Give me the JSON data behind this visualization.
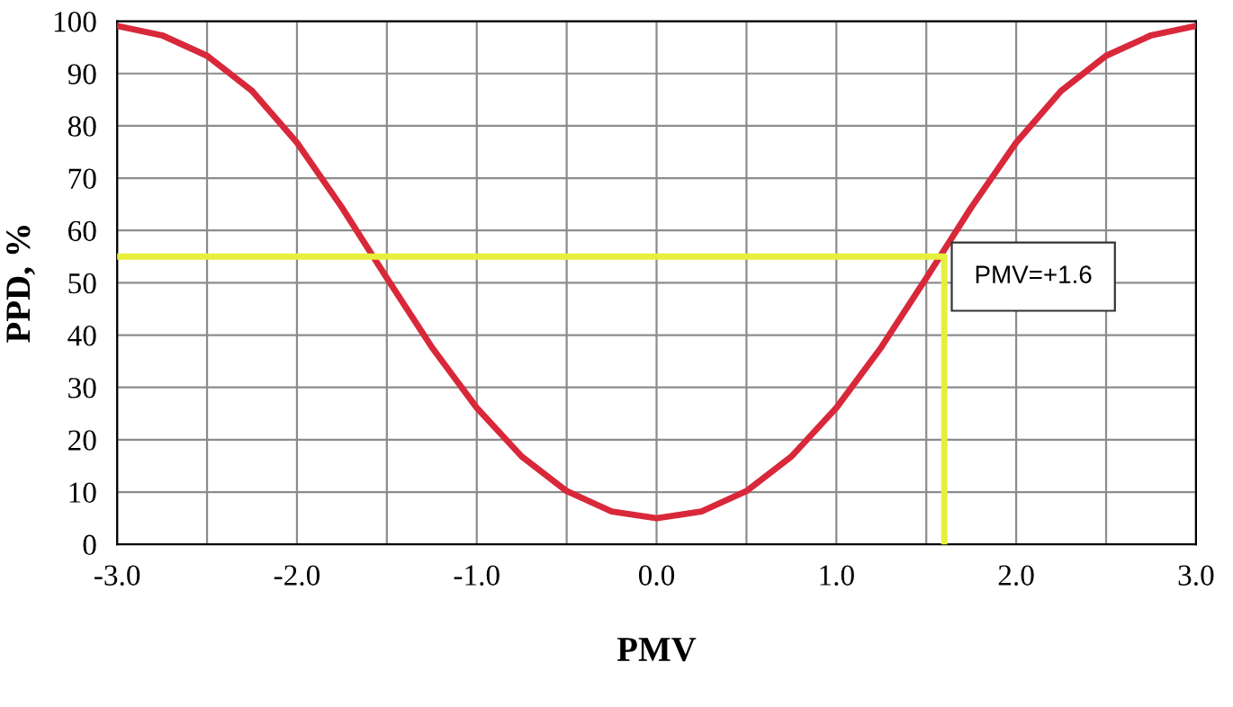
{
  "chart_data": {
    "type": "line",
    "xlabel": "PMV",
    "ylabel": "PPD, %",
    "xlim": [
      -3,
      3
    ],
    "ylim": [
      0,
      100
    ],
    "xticks": [
      {
        "value": -3,
        "label": "-3.0"
      },
      {
        "value": -2.5,
        "label": null
      },
      {
        "value": -2,
        "label": "-2.0"
      },
      {
        "value": -1.5,
        "label": null
      },
      {
        "value": -1,
        "label": "-1.0"
      },
      {
        "value": -0.5,
        "label": null
      },
      {
        "value": 0,
        "label": "0.0"
      },
      {
        "value": 0.5,
        "label": null
      },
      {
        "value": 1,
        "label": "1.0"
      },
      {
        "value": 1.5,
        "label": null
      },
      {
        "value": 2,
        "label": "2.0"
      },
      {
        "value": 2.5,
        "label": null
      },
      {
        "value": 3,
        "label": "3.0"
      }
    ],
    "yticks": [
      0,
      10,
      20,
      30,
      40,
      50,
      60,
      70,
      80,
      90,
      100
    ],
    "grid": true,
    "marker": "none",
    "line_style": "solid",
    "series": [
      {
        "color": "#d8283a",
        "x": [
          -3,
          -2.75,
          -2.5,
          -2.25,
          -2,
          -1.75,
          -1.5,
          -1.25,
          -1,
          -0.75,
          -0.5,
          -0.25,
          0,
          0.25,
          0.5,
          0.75,
          1,
          1.25,
          1.5,
          1.75,
          2,
          2.25,
          2.5,
          2.75,
          3
        ],
        "values": [
          99.1,
          97.3,
          93.4,
          86.7,
          76.8,
          64.4,
          50.9,
          37.7,
          26.1,
          16.8,
          10.2,
          6.3,
          5,
          6.3,
          10.2,
          16.8,
          26.1,
          37.7,
          50.9,
          64.4,
          76.8,
          86.7,
          93.4,
          97.3,
          99.1
        ]
      },
      {
        "color": "#e6f03c",
        "x": [
          -3,
          1.6,
          1.6
        ],
        "values": [
          55,
          55,
          0
        ]
      }
    ],
    "annotations": [
      {
        "text": "PMV=+1.6",
        "x": 1.6,
        "y": 55
      }
    ]
  }
}
